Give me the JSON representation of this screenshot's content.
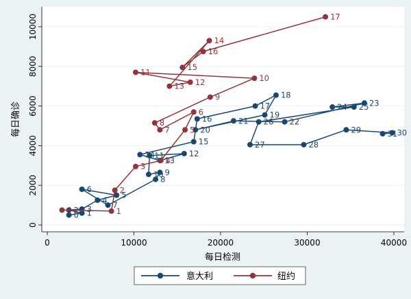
{
  "chart_data": {
    "type": "line",
    "title": "",
    "xlabel": "每日检测",
    "ylabel": "每日确诊",
    "xlim": [
      0,
      40000
    ],
    "ylim": [
      0,
      10400
    ],
    "xticks": [
      0,
      10000,
      20000,
      30000,
      40000
    ],
    "yticks": [
      0,
      2000,
      4000,
      6000,
      8000,
      10000
    ],
    "grid": "horizontal",
    "legend": "bottom",
    "series": [
      {
        "name": "意大利",
        "color": "#1a476f",
        "points": [
          {
            "label": "0",
            "x": 2500,
            "y": 500
          },
          {
            "label": "1",
            "x": 4000,
            "y": 600
          },
          {
            "label": "2",
            "x": 2500,
            "y": 750
          },
          {
            "label": "3",
            "x": 4000,
            "y": 800
          },
          {
            "label": "4",
            "x": 5800,
            "y": 1250
          },
          {
            "label": "5",
            "x": 8000,
            "y": 1500
          },
          {
            "label": "6",
            "x": 4000,
            "y": 1800
          },
          {
            "label": "7",
            "x": 7000,
            "y": 1000
          },
          {
            "label": "8",
            "x": 12500,
            "y": 2300
          },
          {
            "label": "9",
            "x": 13000,
            "y": 2650
          },
          {
            "label": "10",
            "x": 11700,
            "y": 2550
          },
          {
            "label": "11",
            "x": 11800,
            "y": 3500
          },
          {
            "label": "12",
            "x": 15800,
            "y": 3600
          },
          {
            "label": "13",
            "x": 13000,
            "y": 3250
          },
          {
            "label": "14",
            "x": 10700,
            "y": 3550
          },
          {
            "label": "15",
            "x": 16900,
            "y": 4200
          },
          {
            "label": "16",
            "x": 17300,
            "y": 5350
          },
          {
            "label": "17",
            "x": 24000,
            "y": 6000
          },
          {
            "label": "18",
            "x": 26400,
            "y": 6550
          },
          {
            "label": "19",
            "x": 25100,
            "y": 5550
          },
          {
            "label": "20",
            "x": 17100,
            "y": 4800
          },
          {
            "label": "21",
            "x": 21500,
            "y": 5250
          },
          {
            "label": "22",
            "x": 27400,
            "y": 5200
          },
          {
            "label": "23",
            "x": 36600,
            "y": 6150
          },
          {
            "label": "24",
            "x": 32900,
            "y": 5950
          },
          {
            "label": "25",
            "x": 35400,
            "y": 5950
          },
          {
            "label": "26",
            "x": 24400,
            "y": 5200
          },
          {
            "label": "27",
            "x": 23400,
            "y": 4050
          },
          {
            "label": "28",
            "x": 29600,
            "y": 4050
          },
          {
            "label": "29",
            "x": 34500,
            "y": 4800
          },
          {
            "label": "30",
            "x": 39800,
            "y": 4650
          },
          {
            "label": "31",
            "x": 38700,
            "y": 4600
          }
        ]
      },
      {
        "name": "纽约",
        "color": "#90353b",
        "points": [
          {
            "label": "0",
            "x": 1700,
            "y": 750
          },
          {
            "label": "1",
            "x": 7400,
            "y": 700
          },
          {
            "label": "2",
            "x": 7800,
            "y": 1750
          },
          {
            "label": "3",
            "x": 10200,
            "y": 2950
          },
          {
            "label": "4",
            "x": 13100,
            "y": 3250
          },
          {
            "label": "5",
            "x": 15900,
            "y": 4800
          },
          {
            "label": "6",
            "x": 16900,
            "y": 5700
          },
          {
            "label": "7",
            "x": 13000,
            "y": 4800
          },
          {
            "label": "8",
            "x": 12400,
            "y": 5150
          },
          {
            "label": "9",
            "x": 18800,
            "y": 6450
          },
          {
            "label": "10",
            "x": 23900,
            "y": 7400
          },
          {
            "label": "11",
            "x": 10200,
            "y": 7700
          },
          {
            "label": "12",
            "x": 16500,
            "y": 7200
          },
          {
            "label": "13",
            "x": 14100,
            "y": 7000
          },
          {
            "label": "14",
            "x": 18700,
            "y": 9300
          },
          {
            "label": "15",
            "x": 15600,
            "y": 7950
          },
          {
            "label": "16",
            "x": 18000,
            "y": 8750
          },
          {
            "label": "17",
            "x": 32100,
            "y": 10500
          }
        ]
      }
    ]
  }
}
